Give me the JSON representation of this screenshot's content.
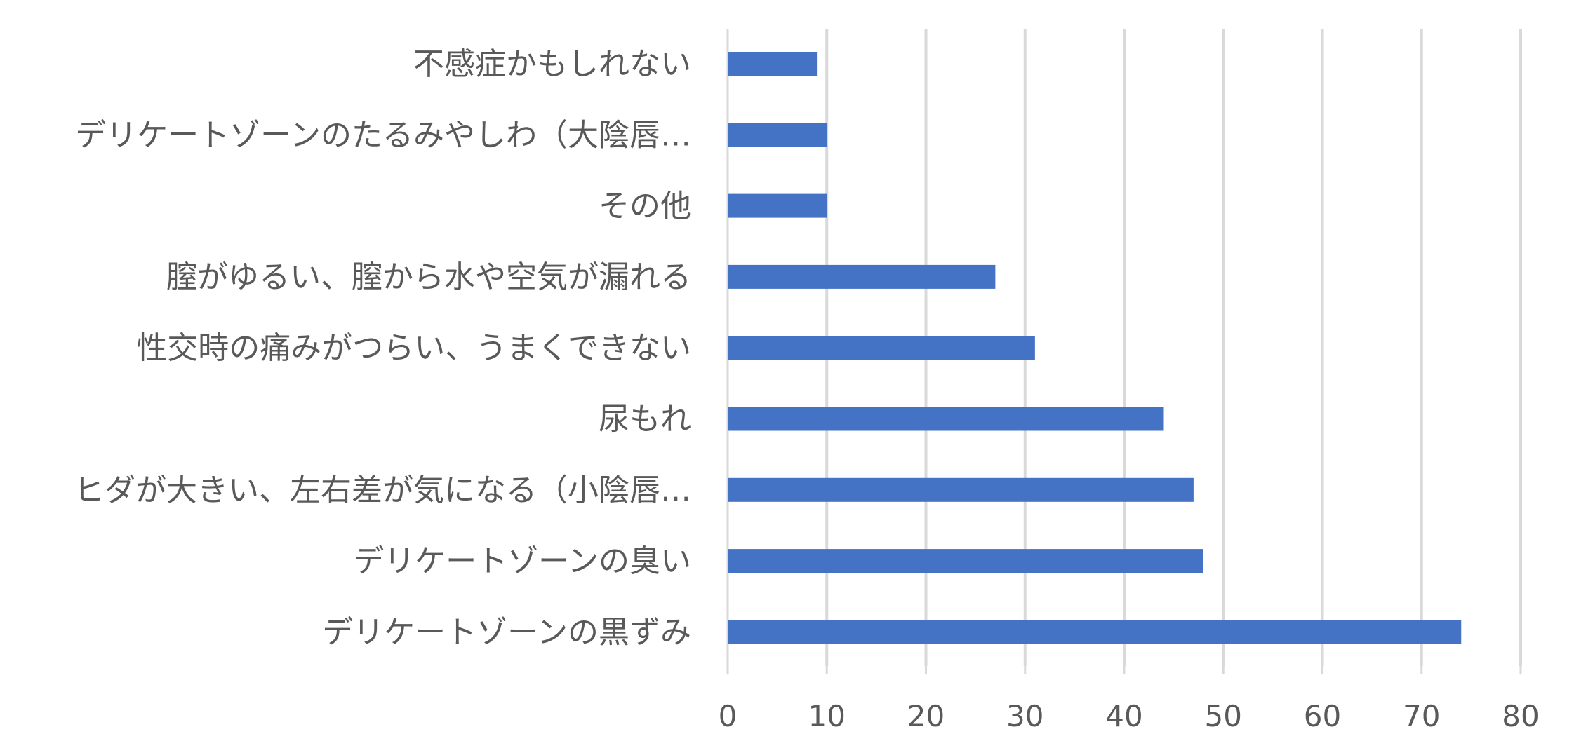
{
  "chart_data": {
    "type": "bar",
    "orientation": "horizontal",
    "title": "",
    "xlabel": "",
    "ylabel": "",
    "categories": [
      "不感症かもしれない",
      "デリケートゾーンのたるみやしわ（大陰唇…",
      "その他",
      "膣がゆるい、膣から水や空気が漏れる",
      "性交時の痛みがつらい、うまくできない",
      "尿もれ",
      "ヒダが大きい、左右差が気になる（小陰唇…",
      "デリケートゾーンの臭い",
      "デリケートゾーンの黒ずみ"
    ],
    "values": [
      9,
      10,
      10,
      27,
      31,
      44,
      47,
      48,
      74
    ],
    "xlim": [
      0,
      80
    ],
    "xticks": [
      0,
      10,
      20,
      30,
      40,
      50,
      60,
      70,
      80
    ],
    "grid": true,
    "legend": "none",
    "bar_color": "#4472c4"
  }
}
